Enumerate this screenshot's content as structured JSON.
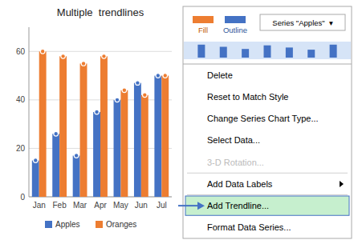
{
  "chart_data": {
    "type": "bar",
    "title": "Multiple  trendlines",
    "categories": [
      "Jan",
      "Feb",
      "Mar",
      "Apr",
      "May",
      "Jun",
      "Jul"
    ],
    "series": [
      {
        "name": "Apples",
        "color": "#4472C4",
        "values": [
          15,
          26,
          17,
          35,
          40,
          47,
          50
        ],
        "marker": "circle"
      },
      {
        "name": "Oranges",
        "color": "#ED7D31",
        "values": [
          60,
          58,
          55,
          58,
          44,
          42,
          50
        ],
        "marker": "circle"
      }
    ],
    "ylim": [
      0,
      70
    ],
    "yticks": [
      0,
      20,
      40,
      60
    ],
    "grid": true,
    "legend": "bottom",
    "annotations": [
      "Fill",
      "Outline",
      "Series \"Apples\"  ▾",
      "Delete",
      "Reset to Match Style",
      "Change Series Chart Type...",
      "Select Data...",
      "3-D Rotation...",
      "Add Data Labels",
      "Add Trendline...",
      "Format Data Series..."
    ]
  }
}
